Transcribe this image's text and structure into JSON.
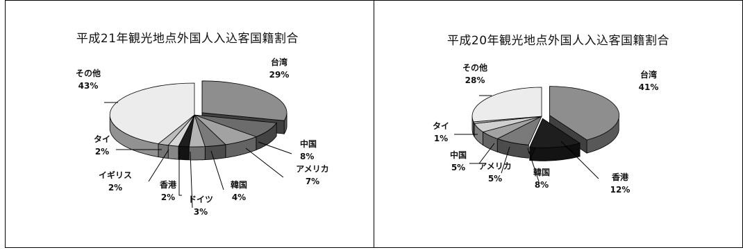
{
  "chart_data": [
    {
      "type": "pie",
      "title": "平成21年観光地点外国人入込客国籍割合",
      "slices": [
        {
          "name": "台湾",
          "value": 29,
          "label": "29%",
          "color": "#8e8e8e"
        },
        {
          "name": "中国",
          "value": 8,
          "label": "8%",
          "color": "#6c6c6c"
        },
        {
          "name": "アメリカ",
          "value": 7,
          "label": "7%",
          "color": "#a2a2a2"
        },
        {
          "name": "韓国",
          "value": 4,
          "label": "4%",
          "color": "#7a7a7a"
        },
        {
          "name": "ドイツ",
          "value": 3,
          "label": "3%",
          "color": "#b4b4b4"
        },
        {
          "name": "香港",
          "value": 2,
          "label": "2%",
          "color": "#1e1e1e"
        },
        {
          "name": "イギリス",
          "value": 2,
          "label": "2%",
          "color": "#d8d8d8"
        },
        {
          "name": "タイ",
          "value": 2,
          "label": "2%",
          "color": "#bdbdbd"
        },
        {
          "name": "その他",
          "value": 43,
          "label": "43%",
          "color": "#ececec"
        }
      ]
    },
    {
      "type": "pie",
      "title": "平成20年観光地点外国人入込客国籍割合",
      "slices": [
        {
          "name": "台湾",
          "value": 41,
          "label": "41%",
          "color": "#8e8e8e"
        },
        {
          "name": "香港",
          "value": 12,
          "label": "12%",
          "color": "#1e1e1e"
        },
        {
          "name": "韓国",
          "value": 8,
          "label": "8%",
          "color": "#7a7a7a"
        },
        {
          "name": "アメリカ",
          "value": 5,
          "label": "5%",
          "color": "#a2a2a2"
        },
        {
          "name": "中国",
          "value": 5,
          "label": "5%",
          "color": "#d0d0d0"
        },
        {
          "name": "タイ",
          "value": 1,
          "label": "1%",
          "color": "#bdbdbd"
        },
        {
          "name": "その他",
          "value": 28,
          "label": "28%",
          "color": "#ececec"
        }
      ]
    }
  ]
}
